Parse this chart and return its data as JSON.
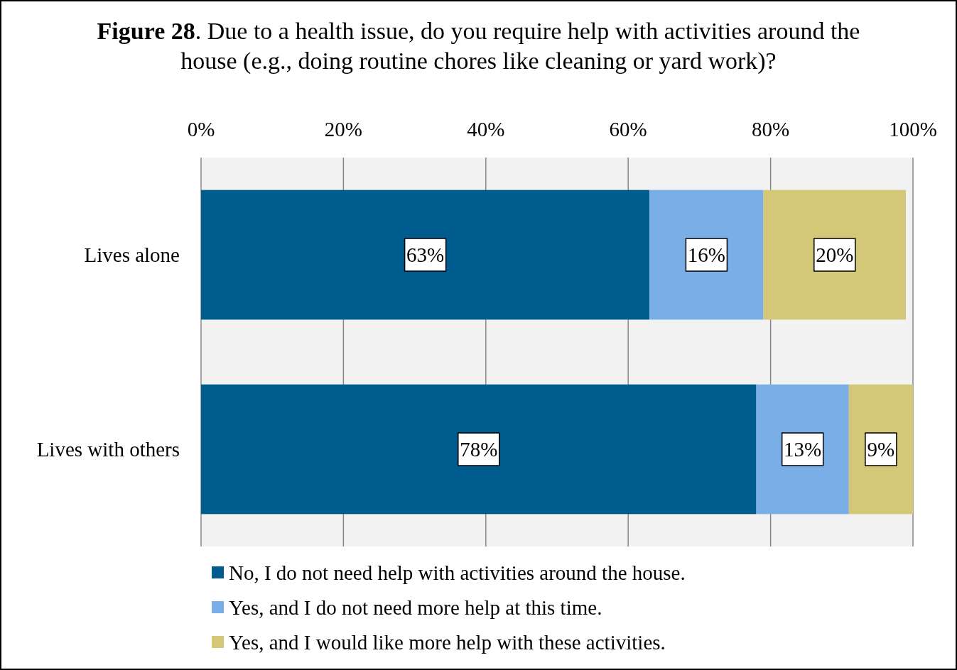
{
  "chart_data": {
    "type": "bar",
    "orientation": "horizontal",
    "stacked": true,
    "title": "Figure 28. Due to a health issue, do you require help with activities around the house (e.g., doing routine chores like cleaning or yard work)?",
    "categories": [
      "Lives alone",
      "Lives with others"
    ],
    "series": [
      {
        "name": "No, I do not need help with activities around the house.",
        "color": "#005b8e",
        "values": [
          63,
          78
        ],
        "value_labels": [
          "63%",
          "78%"
        ]
      },
      {
        "name": "Yes, and I do not need more help at this time.",
        "color": "#7aaee6",
        "values": [
          16,
          13
        ],
        "value_labels": [
          "16%",
          "13%"
        ]
      },
      {
        "name": "Yes, and I would like more help with these activities.",
        "color": "#d4c878",
        "values": [
          20,
          9
        ],
        "value_labels": [
          "20%",
          "9%"
        ]
      }
    ],
    "xlim": [
      0,
      100
    ],
    "xticks": [
      {
        "value": 0,
        "label": "0%"
      },
      {
        "value": 20,
        "label": "20%"
      },
      {
        "value": 40,
        "label": "40%"
      },
      {
        "value": 60,
        "label": "60%"
      },
      {
        "value": 80,
        "label": "80%"
      },
      {
        "value": 100,
        "label": "100%"
      }
    ],
    "grid": "x",
    "legend": "bottom"
  }
}
